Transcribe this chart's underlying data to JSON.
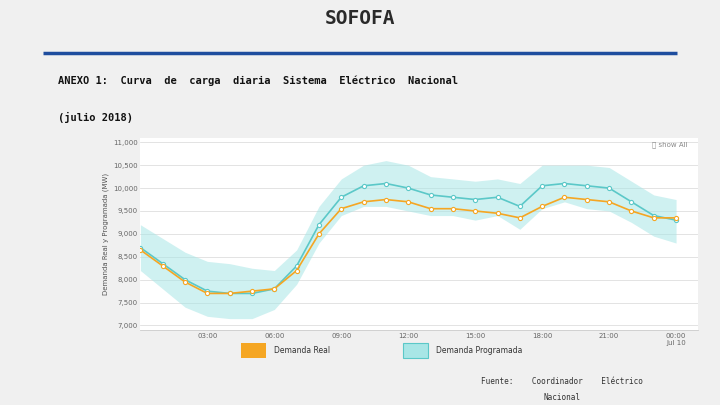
{
  "title_line1": "ANEXO 1:  Curva  de  carga  diaria  Sistema  Eléctrico  Nacional",
  "title_line2": "(julio 2018)",
  "ylabel": "Demanda Real y Programada (MW)",
  "yticks": [
    7000,
    7500,
    8000,
    8500,
    9000,
    9500,
    10000,
    10500,
    11000
  ],
  "ytick_labels": [
    "7,000",
    "7,500",
    "8,000",
    "8,500",
    "9,000",
    "9,500",
    "10,000",
    "10,500",
    "11,000"
  ],
  "ylim": [
    6900,
    11100
  ],
  "xtick_labels": [
    "03:00",
    "06:00",
    "09:00",
    "12:00",
    "15:00",
    "18:00",
    "21:00",
    "00:00\nJul 10"
  ],
  "x_hours": [
    0,
    1,
    2,
    3,
    4,
    5,
    6,
    7,
    8,
    9,
    10,
    11,
    12,
    13,
    14,
    15,
    16,
    17,
    18,
    19,
    20,
    21,
    22,
    23,
    24
  ],
  "real_demand": [
    8650,
    8300,
    7950,
    7700,
    7700,
    7750,
    7800,
    8200,
    9000,
    9550,
    9700,
    9750,
    9700,
    9550,
    9550,
    9500,
    9450,
    9350,
    9600,
    9800,
    9750,
    9700,
    9500,
    9350,
    9350
  ],
  "prog_demand": [
    8700,
    8350,
    8000,
    7750,
    7700,
    7700,
    7800,
    8300,
    9200,
    9800,
    10050,
    10100,
    10000,
    9850,
    9800,
    9750,
    9800,
    9600,
    10050,
    10100,
    10050,
    10000,
    9700,
    9400,
    9300
  ],
  "prog_upper": [
    9200,
    8900,
    8600,
    8400,
    8350,
    8250,
    8200,
    8650,
    9600,
    10200,
    10500,
    10600,
    10500,
    10250,
    10200,
    10150,
    10200,
    10100,
    10500,
    10500,
    10500,
    10450,
    10150,
    9850,
    9750
  ],
  "prog_lower": [
    8200,
    7800,
    7400,
    7200,
    7150,
    7150,
    7350,
    7900,
    8800,
    9400,
    9600,
    9600,
    9500,
    9400,
    9400,
    9300,
    9400,
    9100,
    9550,
    9700,
    9550,
    9500,
    9250,
    8950,
    8800
  ],
  "real_color": "#f5a623",
  "prog_color": "#5bc8c8",
  "prog_fill_color": "#a8e6e6",
  "background_color": "#f0f0f0",
  "chart_bg": "#ffffff",
  "header_bar_color": "#1e4d9e",
  "sofofa_text": "SOFOFA",
  "legend_real": "Demanda Real",
  "legend_prog": "Demanda Programada",
  "show_all_text": "show All",
  "source_line1": "Fuente:    Coordinador    Eléctrico",
  "source_line2": "Nacional"
}
